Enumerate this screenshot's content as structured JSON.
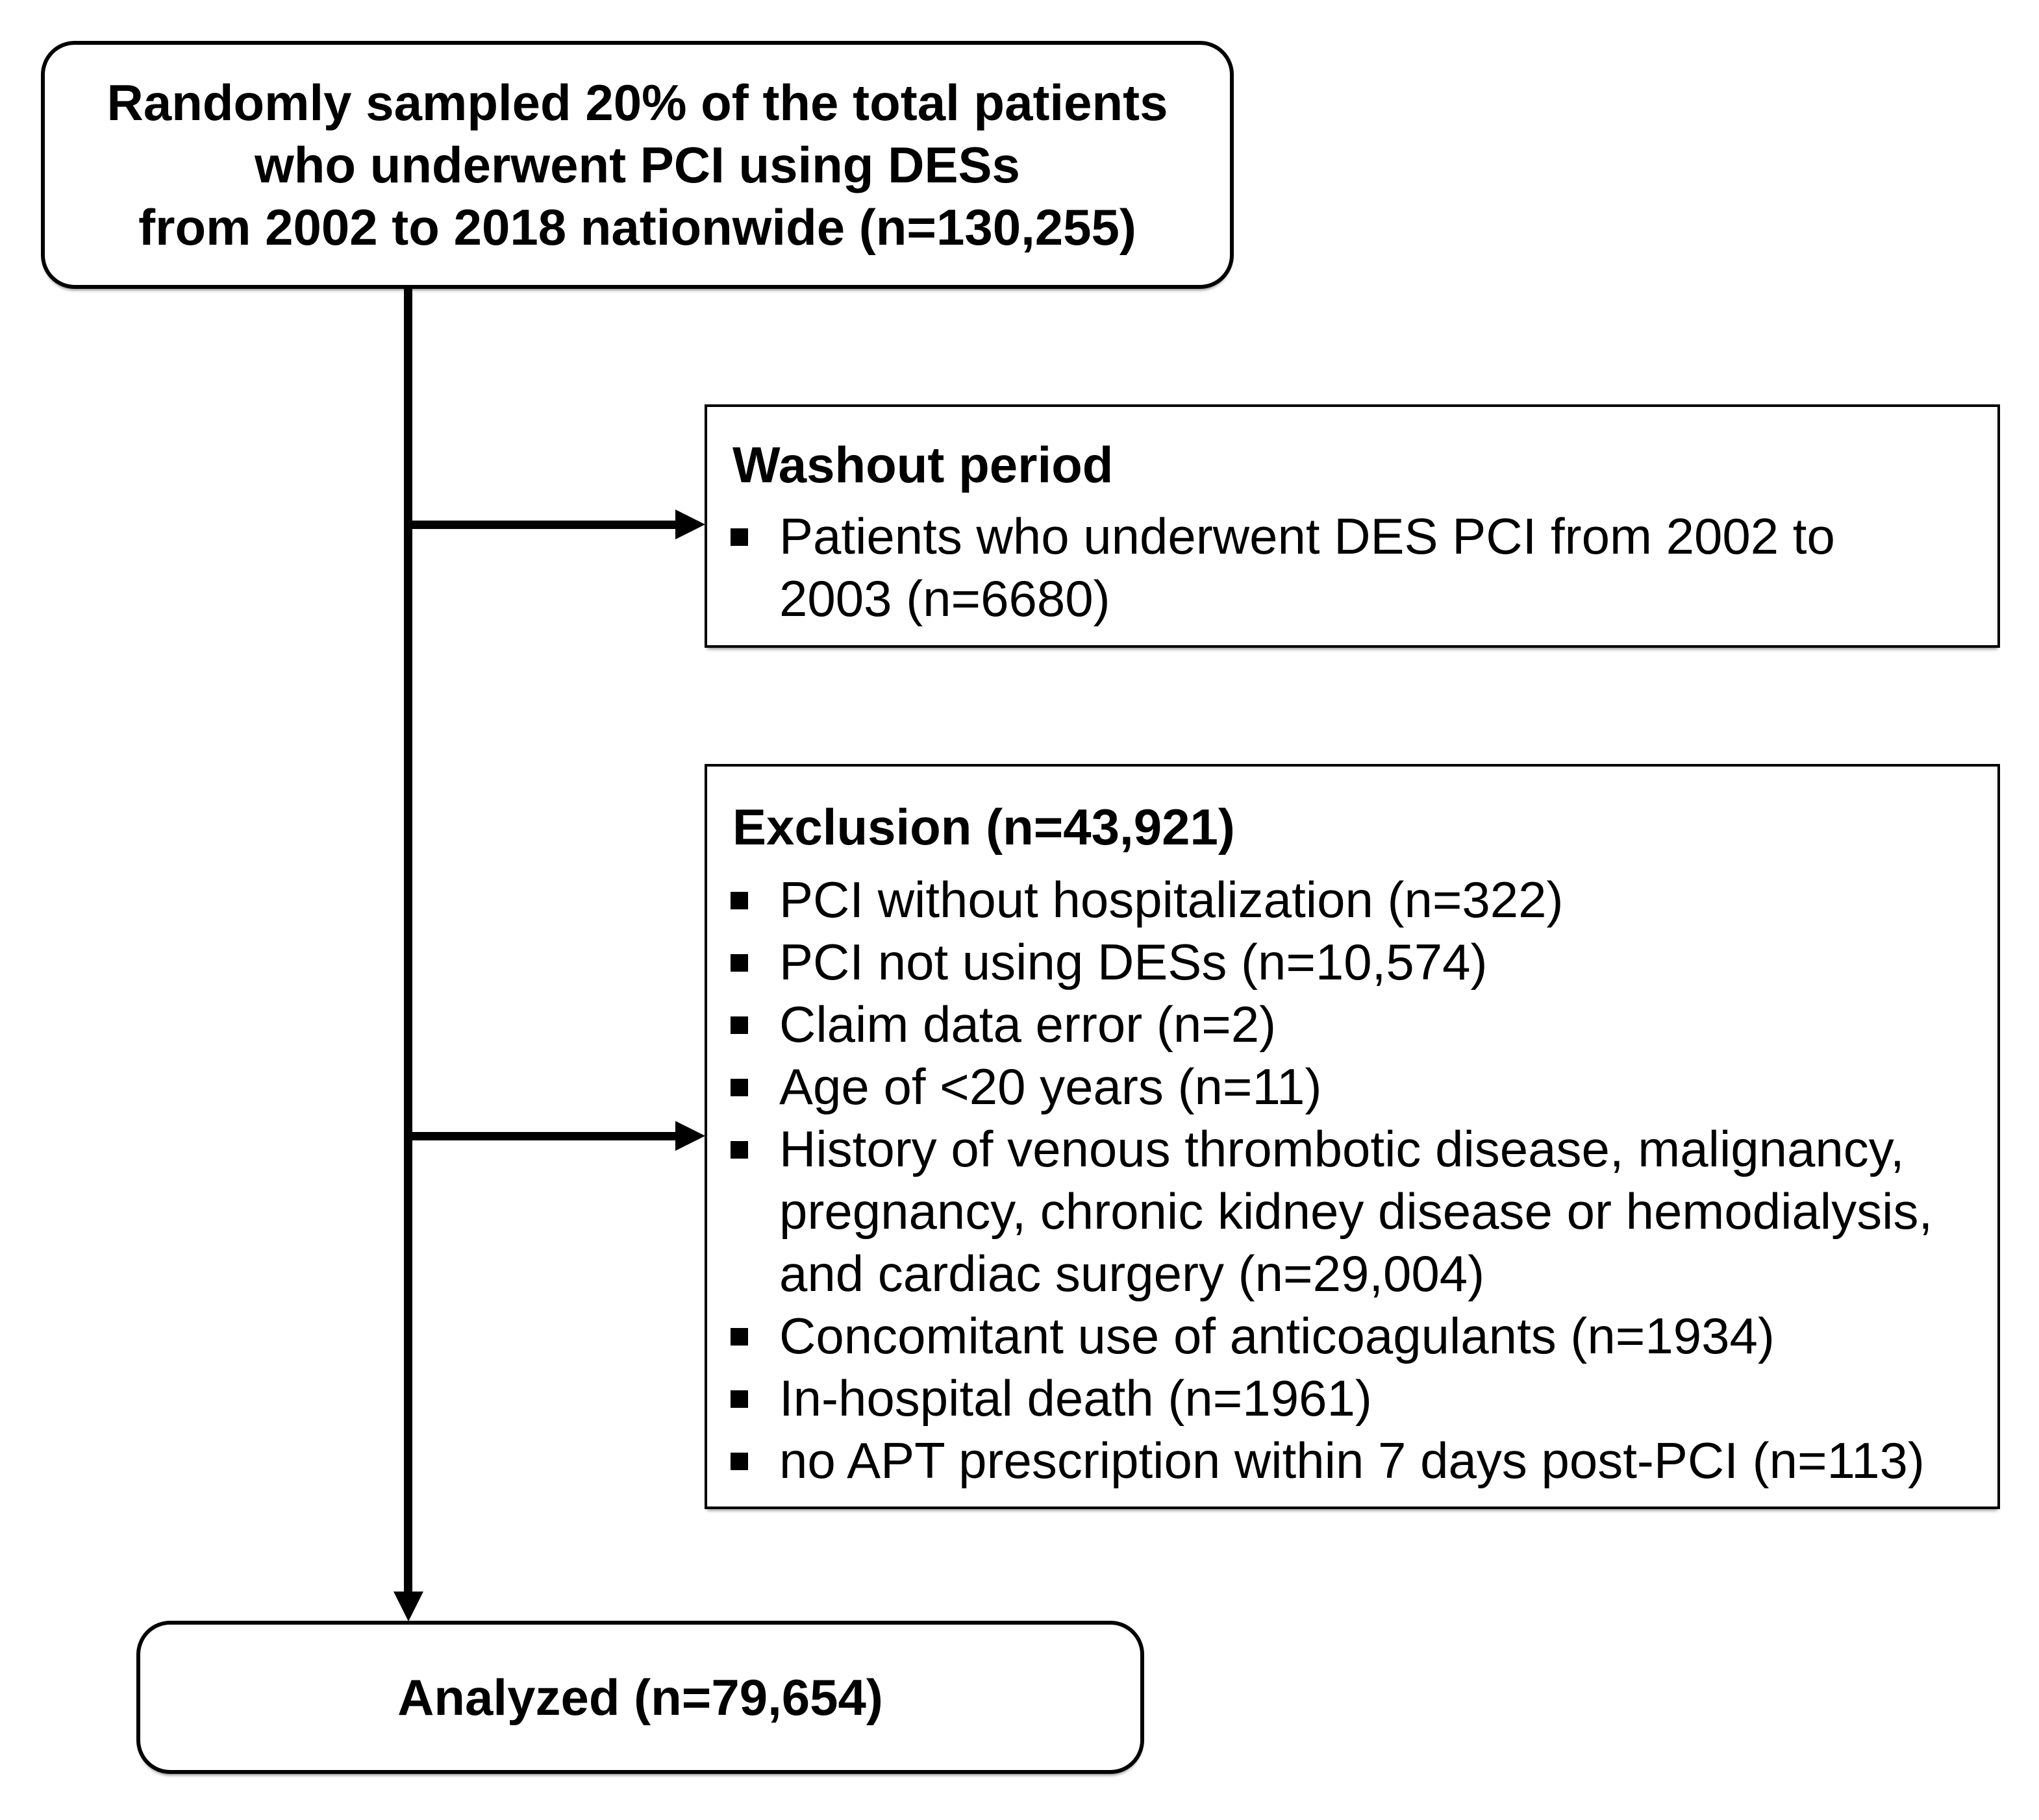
{
  "colors": {
    "stroke": "#000000",
    "background": "#ffffff"
  },
  "top_box": {
    "lines": [
      "Randomly sampled 20% of the total patients",
      "who underwent PCI using DESs",
      "from 2002 to 2018 nationwide (n=130,255)"
    ]
  },
  "washout_box": {
    "title": "Washout period",
    "lines": [
      {
        "bullet": true,
        "text": "Patients who underwent DES PCI from 2002 to"
      },
      {
        "bullet": false,
        "text": "2003 (n=6680)"
      }
    ]
  },
  "exclusion_box": {
    "title": "Exclusion (n=43,921)",
    "lines": [
      {
        "bullet": true,
        "text": "PCI without hospitalization (n=322)"
      },
      {
        "bullet": true,
        "text": "PCI not using DESs (n=10,574)"
      },
      {
        "bullet": true,
        "text": "Claim data error (n=2)"
      },
      {
        "bullet": true,
        "text": "Age of <20 years (n=11)"
      },
      {
        "bullet": true,
        "text": "History of venous thrombotic disease, malignancy,"
      },
      {
        "bullet": false,
        "text": "pregnancy, chronic kidney disease or hemodialysis,"
      },
      {
        "bullet": false,
        "text": "and cardiac surgery (n=29,004)"
      },
      {
        "bullet": true,
        "text": "Concomitant use of anticoagulants (n=1934)"
      },
      {
        "bullet": true,
        "text": "In-hospital death (n=1961)"
      },
      {
        "bullet": true,
        "text": "no APT prescription within 7 days post-PCI (n=113)"
      }
    ]
  },
  "analyzed_box": {
    "label": "Analyzed (n=79,654)"
  }
}
